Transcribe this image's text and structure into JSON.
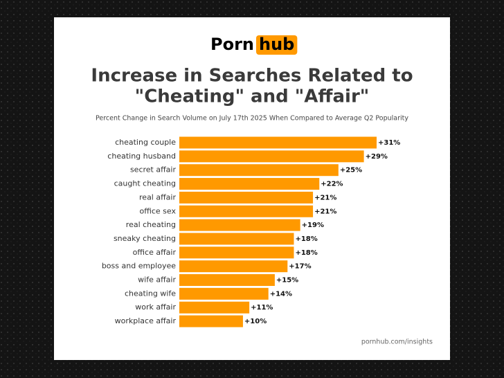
{
  "logo": {
    "text": "Porn",
    "highlight": "hub"
  },
  "chart_data": {
    "type": "hbar",
    "title": [
      "Increase in Searches Related to",
      "\"Cheating\" and \"Affair\""
    ],
    "subtitle": "Percent Change in Search Volume on July 17th 2025 When Compared to Average Q2 Popularity",
    "categories": [
      "cheating couple",
      "cheating husband",
      "secret affair",
      "caught cheating",
      "real affair",
      "office sex",
      "real cheating",
      "sneaky cheating",
      "office affair",
      "boss and employee",
      "wife affair",
      "cheating wife",
      "work affair",
      "workplace affair"
    ],
    "values": [
      31,
      29,
      25,
      22,
      21,
      21,
      19,
      18,
      18,
      17,
      15,
      14,
      11,
      10
    ],
    "value_labels": [
      "+31%",
      "+29%",
      "+25%",
      "+22%",
      "+21%",
      "+21%",
      "+19%",
      "+18%",
      "+18%",
      "+17%",
      "+15%",
      "+14%",
      "+11%",
      "+10%"
    ],
    "color": "#ff9900"
  },
  "source": "pornhub.com/insights"
}
